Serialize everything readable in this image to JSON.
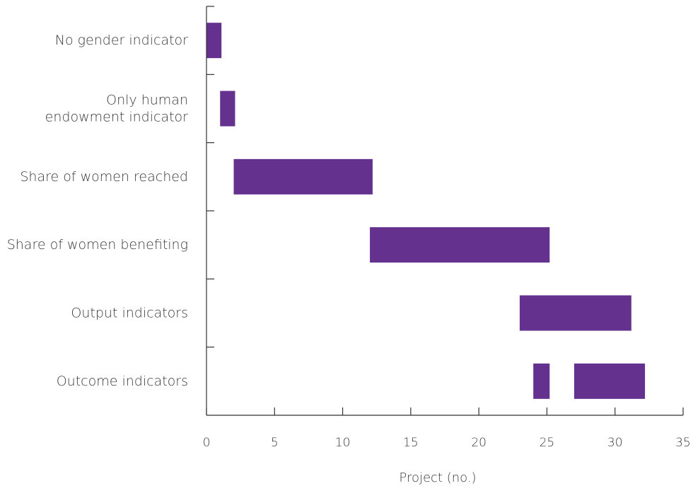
{
  "chart_data": {
    "type": "bar",
    "orientation": "horizontal-range",
    "categories": [
      {
        "lines": [
          "No gender indicator"
        ],
        "segments": [
          [
            0,
            1.1
          ]
        ]
      },
      {
        "lines": [
          "Only human",
          "endowment indicator"
        ],
        "segments": [
          [
            1,
            2.1
          ]
        ]
      },
      {
        "lines": [
          "Share of women reached"
        ],
        "segments": [
          [
            2,
            12.2
          ]
        ]
      },
      {
        "lines": [
          "Share of women benefiting"
        ],
        "segments": [
          [
            12,
            25.2
          ]
        ]
      },
      {
        "lines": [
          "Output indicators"
        ],
        "segments": [
          [
            23,
            31.2
          ]
        ]
      },
      {
        "lines": [
          "Outcome indicators"
        ],
        "segments": [
          [
            24,
            25.2
          ],
          [
            27,
            32.2
          ]
        ]
      }
    ],
    "xticks": [
      0,
      5,
      10,
      15,
      20,
      25,
      30,
      35
    ],
    "xlim": [
      0,
      35
    ],
    "xlabel": "Project (no.)",
    "ylabel": "",
    "title": "",
    "grid": false,
    "colors": {
      "bar": "#65318f",
      "axis": "#333333",
      "text": "#3a3a3a"
    }
  }
}
